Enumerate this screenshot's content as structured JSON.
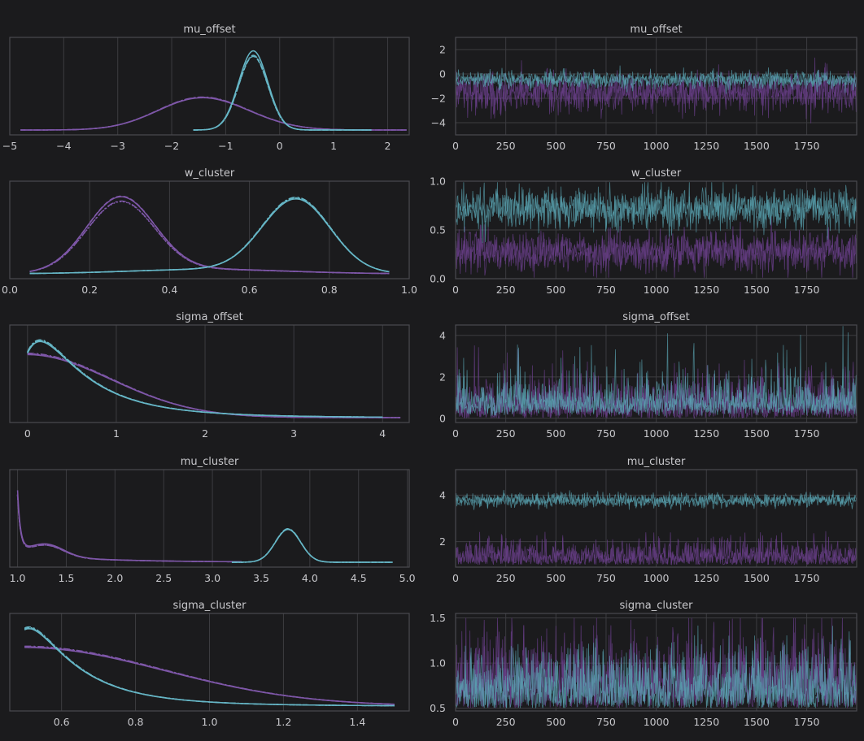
{
  "colors": {
    "background": "#1b1b1d",
    "grid": "#3c3c40",
    "frame": "#4a4a4f",
    "text": "#c8c8cc",
    "purple": "#6a3f8a",
    "purple_line": "#7e57a8",
    "teal": "#5aa5b4",
    "teal_line": "#66b6c6"
  },
  "chart_data": [
    {
      "type": "line",
      "panel": "density",
      "title": "mu_offset",
      "xlim": [
        -5,
        2.4
      ],
      "xticks": [
        -5,
        -4,
        -3,
        -2,
        -1,
        0,
        1,
        2
      ],
      "xtick_labels": [
        "−5",
        "−4",
        "−3",
        "−2",
        "−1",
        "0",
        "1",
        "2"
      ],
      "ylim": [
        0,
        1.15
      ],
      "series": [
        {
          "color": "purple",
          "range": [
            -4.8,
            2.35
          ],
          "components": [
            {
              "mu": -1.5,
              "sigma": 0.78,
              "w": 1.0
            },
            {
              "mu": -0.6,
              "sigma": 0.7,
              "w": 0.18
            }
          ],
          "peak": 0.42
        },
        {
          "color": "teal",
          "range": [
            -1.6,
            1.7
          ],
          "components": [
            {
              "mu": -0.48,
              "sigma": 0.27,
              "w": 1.0
            }
          ],
          "peak": 0.98
        }
      ]
    },
    {
      "type": "line",
      "panel": "trace",
      "title": "mu_offset",
      "xlim": [
        0,
        1999
      ],
      "xticks": [
        0,
        250,
        500,
        750,
        1000,
        1250,
        1500,
        1750
      ],
      "ylim": [
        -5,
        3
      ],
      "yticks": [
        2,
        0,
        -2,
        -4
      ],
      "ytick_labels": [
        "2",
        "0",
        "−2",
        "−4"
      ],
      "series": [
        {
          "color": "purple",
          "mean": -1.5,
          "sd": 0.75,
          "noise": "normal"
        },
        {
          "color": "teal",
          "mean": -0.48,
          "sd": 0.35,
          "noise": "normal"
        }
      ]
    },
    {
      "type": "line",
      "panel": "density",
      "title": "w_cluster",
      "xlim": [
        0.0,
        1.0
      ],
      "xticks": [
        0.0,
        0.2,
        0.4,
        0.6,
        0.8,
        1.0
      ],
      "xtick_labels": [
        "0.0",
        "0.2",
        "0.4",
        "0.6",
        "0.8",
        "1.0"
      ],
      "ylim": [
        0,
        1.1
      ],
      "series": [
        {
          "color": "purple",
          "range": [
            0.05,
            0.95
          ],
          "components": [
            {
              "mu": 0.28,
              "sigma": 0.085,
              "w": 1.0
            },
            {
              "mu": 0.5,
              "sigma": 0.2,
              "w": 0.06
            }
          ],
          "peak": 0.92
        },
        {
          "color": "teal",
          "range": [
            0.05,
            0.95
          ],
          "components": [
            {
              "mu": 0.72,
              "sigma": 0.085,
              "w": 1.0
            },
            {
              "mu": 0.5,
              "sigma": 0.2,
              "w": 0.06
            }
          ],
          "peak": 0.92
        }
      ]
    },
    {
      "type": "line",
      "panel": "trace",
      "title": "w_cluster",
      "xlim": [
        0,
        1999
      ],
      "xticks": [
        0,
        250,
        500,
        750,
        1000,
        1250,
        1500,
        1750
      ],
      "ylim": [
        0.0,
        1.0
      ],
      "yticks": [
        1.0,
        0.5,
        0.0
      ],
      "ytick_labels": [
        "1.0",
        "0.5",
        "0.0"
      ],
      "series": [
        {
          "color": "purple",
          "mean": 0.28,
          "sd": 0.1,
          "noise": "normal",
          "clip": [
            0.01,
            0.99
          ]
        },
        {
          "color": "teal",
          "mean": 0.72,
          "sd": 0.1,
          "noise": "normal",
          "clip": [
            0.01,
            0.99
          ]
        }
      ]
    },
    {
      "type": "line",
      "panel": "density",
      "title": "sigma_offset",
      "xlim": [
        -0.2,
        4.3
      ],
      "xticks": [
        0,
        1,
        2,
        3,
        4
      ],
      "xtick_labels": [
        "0",
        "1",
        "2",
        "3",
        "4"
      ],
      "ylim": [
        0,
        1.1
      ],
      "series": [
        {
          "color": "purple",
          "range": [
            0.0,
            4.2
          ],
          "halfnormal": 0.95,
          "peak": 0.78
        },
        {
          "color": "teal",
          "range": [
            0.0,
            4.0
          ],
          "lognormal": [
            -0.35,
            0.75
          ],
          "peak": 0.97
        }
      ]
    },
    {
      "type": "line",
      "panel": "trace",
      "title": "sigma_offset",
      "xlim": [
        0,
        1999
      ],
      "xticks": [
        0,
        250,
        500,
        750,
        1000,
        1250,
        1500,
        1750
      ],
      "ylim": [
        -0.2,
        4.5
      ],
      "yticks": [
        4,
        2,
        0
      ],
      "ytick_labels": [
        "4",
        "2",
        "0"
      ],
      "series": [
        {
          "color": "purple",
          "mean": 0.0,
          "sd": 0.95,
          "noise": "halfnormal"
        },
        {
          "color": "teal",
          "mean": -0.35,
          "sd": 0.6,
          "noise": "lognormal"
        }
      ]
    },
    {
      "type": "line",
      "panel": "density",
      "title": "mu_cluster",
      "xlim": [
        0.92,
        5.02
      ],
      "xticks": [
        1.0,
        1.5,
        2.0,
        2.5,
        3.0,
        3.5,
        4.0,
        4.5,
        5.0
      ],
      "xtick_labels": [
        "1.0",
        "1.5",
        "2.0",
        "2.5",
        "3.0",
        "3.5",
        "4.0",
        "4.5",
        "5.0"
      ],
      "ylim": [
        0,
        1.1
      ],
      "series": [
        {
          "color": "purple",
          "range": [
            1.0,
            3.3
          ],
          "spike": true,
          "peak": 1.0
        },
        {
          "color": "teal",
          "range": [
            3.2,
            4.85
          ],
          "components": [
            {
              "mu": 3.78,
              "sigma": 0.13,
              "w": 1.0
            }
          ],
          "peak": 0.4
        }
      ]
    },
    {
      "type": "line",
      "panel": "trace",
      "title": "mu_cluster",
      "xlim": [
        0,
        1999
      ],
      "xticks": [
        0,
        250,
        500,
        750,
        1000,
        1250,
        1500,
        1750
      ],
      "ylim": [
        0.9,
        5.1
      ],
      "yticks": [
        4,
        2
      ],
      "ytick_labels": [
        "4",
        "2"
      ],
      "series": [
        {
          "color": "purple",
          "mean": 1.0,
          "sd": 0.5,
          "noise": "halfnormal"
        },
        {
          "color": "teal",
          "mean": 3.78,
          "sd": 0.15,
          "noise": "normal"
        }
      ]
    },
    {
      "type": "line",
      "panel": "density",
      "title": "sigma_cluster",
      "xlim": [
        0.46,
        1.54
      ],
      "xticks": [
        0.6,
        0.8,
        1.0,
        1.2,
        1.4
      ],
      "xtick_labels": [
        "0.6",
        "0.8",
        "1.0",
        "1.2",
        "1.4"
      ],
      "ylim": [
        0,
        1.1
      ],
      "series": [
        {
          "color": "purple",
          "range": [
            0.5,
            1.5
          ],
          "halfnormal_from": [
            0.5,
            0.38
          ],
          "peak": 0.72
        },
        {
          "color": "teal",
          "range": [
            0.5,
            1.5
          ],
          "lognormal_from": [
            0.5,
            -1.8,
            0.75
          ],
          "peak": 0.98
        }
      ]
    },
    {
      "type": "line",
      "panel": "trace",
      "title": "sigma_cluster",
      "xlim": [
        0,
        1999
      ],
      "xticks": [
        0,
        250,
        500,
        750,
        1000,
        1250,
        1500,
        1750
      ],
      "ylim": [
        0.47,
        1.55
      ],
      "yticks": [
        1.5,
        1.0,
        0.5
      ],
      "ytick_labels": [
        "1.5",
        "1.0",
        "0.5"
      ],
      "series": [
        {
          "color": "purple",
          "mean": 0.5,
          "sd": 0.38,
          "noise": "halfnormal",
          "clip": [
            0.5,
            1.5
          ]
        },
        {
          "color": "teal",
          "mean": 0.5,
          "sd": 0.3,
          "noise": "halfnormal",
          "clip": [
            0.5,
            1.5
          ]
        }
      ]
    }
  ]
}
